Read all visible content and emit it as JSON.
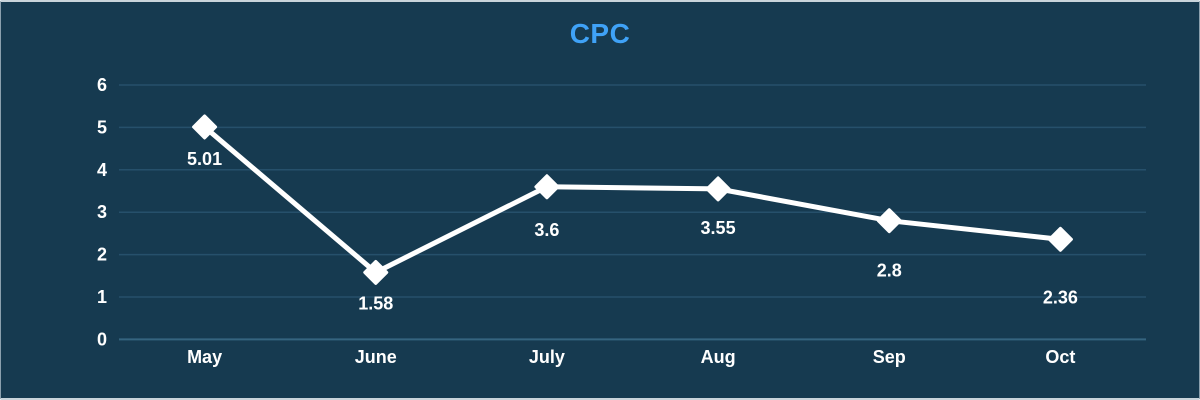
{
  "chart": {
    "title_color": "#3FA2F7",
    "background_color": "#163A50",
    "grid_color": "#26506B",
    "zero_line_color": "#35647F",
    "series_color": "#FFFFFF",
    "tick_label_color": "#FFFFFF",
    "value_label_color": "#FFFFFF"
  },
  "chart_data": {
    "type": "line",
    "title": "CPC",
    "categories": [
      "May",
      "June",
      "July",
      "Aug",
      "Sep",
      "Oct"
    ],
    "values": [
      5.01,
      1.58,
      3.6,
      3.55,
      2.8,
      2.36
    ],
    "data_labels": [
      "5.01",
      "1.58",
      "3.6",
      "3.55",
      "2.8",
      "2.36"
    ],
    "xlabel": "",
    "ylabel": "",
    "ylim": [
      0,
      6
    ],
    "yticks": [
      0,
      1,
      2,
      3,
      4,
      5,
      6
    ],
    "grid": true,
    "legend": "none",
    "marker": "diamond",
    "line_width": 5
  }
}
